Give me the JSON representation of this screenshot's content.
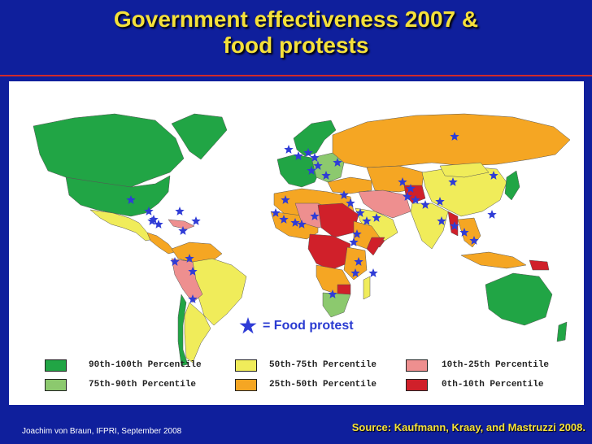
{
  "title": {
    "line1": "Government effectiveness 2007 &",
    "line2": "food protests"
  },
  "map": {
    "legend_key_label": "= Food protest",
    "legend": [
      {
        "label": "90th-100th Percentile",
        "color": "#21a545"
      },
      {
        "label": "75th-90th Percentile",
        "color": "#8cc96e"
      },
      {
        "label": "50th-75th Percentile",
        "color": "#f0ec5a"
      },
      {
        "label": "25th-50th Percentile",
        "color": "#f5a623"
      },
      {
        "label": "10th-25th Percentile",
        "color": "#ee8f8f"
      },
      {
        "label": "0th-10th Percentile",
        "color": "#d0202a"
      }
    ],
    "star_color": "#2f3cd6"
  },
  "footer": {
    "credit": "Joachim von Braun, IFPRI, September 2008",
    "source": "Source: Kaufmann, Kraay, and Mastruzzi 2008."
  }
}
